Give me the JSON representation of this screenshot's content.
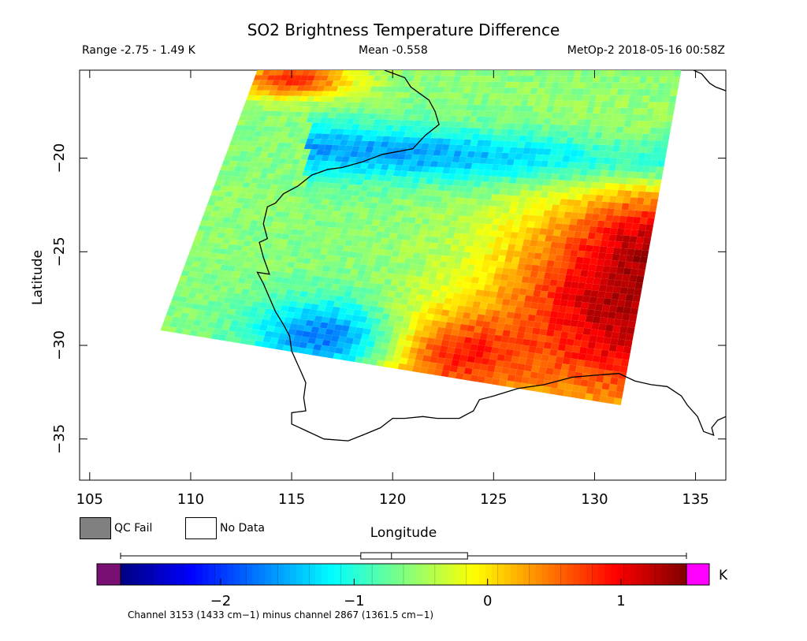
{
  "chart_data": {
    "type": "heatmap",
    "title": "SO2 Brightness Temperature Difference",
    "subtitle_left": "Range -2.75 - 1.49 K",
    "subtitle_center": "Mean -0.558",
    "subtitle_right": "MetOp-2 2018-05-16 00:58Z",
    "xlabel": "Longitude",
    "ylabel": "Latitude",
    "xlim": [
      104.5,
      136.5
    ],
    "ylim": [
      -37.2,
      -15.3
    ],
    "x_ticks": [
      105,
      110,
      115,
      120,
      125,
      130,
      135
    ],
    "y_ticks": [
      -20,
      -25,
      -30,
      -35
    ],
    "swath_corners_lonlat": [
      [
        113.3,
        -15.3
      ],
      [
        134.3,
        -15.3
      ],
      [
        131.3,
        -33.2
      ],
      [
        108.5,
        -29.2
      ]
    ],
    "field": {
      "background": -0.6,
      "features": [
        {
          "kind": "band",
          "value": -1.55,
          "p1": [
            117.5,
            -19.6
          ],
          "p2": [
            134.5,
            -20.6
          ],
          "width": 1.5
        },
        {
          "kind": "blob",
          "value": 1.2,
          "center": [
            131.0,
            -28.0
          ],
          "radius": [
            6.0,
            6.0
          ]
        },
        {
          "kind": "blob",
          "value": 1.35,
          "center": [
            132.5,
            -26.0
          ],
          "radius": [
            2.5,
            3.5
          ]
        },
        {
          "kind": "blob",
          "value": 0.9,
          "center": [
            123.5,
            -30.5
          ],
          "radius": [
            4.5,
            2.5
          ]
        },
        {
          "kind": "blob",
          "value": -1.7,
          "center": [
            116.5,
            -29.5
          ],
          "radius": [
            3.5,
            2.0
          ]
        },
        {
          "kind": "blob",
          "value": 0.8,
          "center": [
            115.0,
            -15.8
          ],
          "radius": [
            3.0,
            1.0
          ]
        }
      ],
      "noise": 0.15
    },
    "colorbar": {
      "min": -2.75,
      "max": 1.49,
      "ticks": [
        -2,
        -1,
        0,
        1
      ],
      "tick_labels": [
        "−2",
        "−1",
        "0",
        "1"
      ],
      "unit": "K",
      "underflow_color": "#7a0f73",
      "overflow_color": "#ff00ff",
      "colors": [
        "#000080",
        "#0000ff",
        "#0080ff",
        "#00ffff",
        "#80ff80",
        "#ffff00",
        "#ff8000",
        "#ff0000",
        "#800000"
      ],
      "boxplot": {
        "whisker_low": -2.75,
        "q1": -0.95,
        "median": -0.72,
        "q3": -0.15,
        "whisker_high": 1.49
      }
    },
    "caption": "Channel 3153 (1433 cm−1) minus channel 2867 (1361.5 cm−1)",
    "legend": [
      {
        "label": "QC Fail",
        "color": "#808080"
      },
      {
        "label": "No Data",
        "color": "#ffffff"
      }
    ]
  }
}
